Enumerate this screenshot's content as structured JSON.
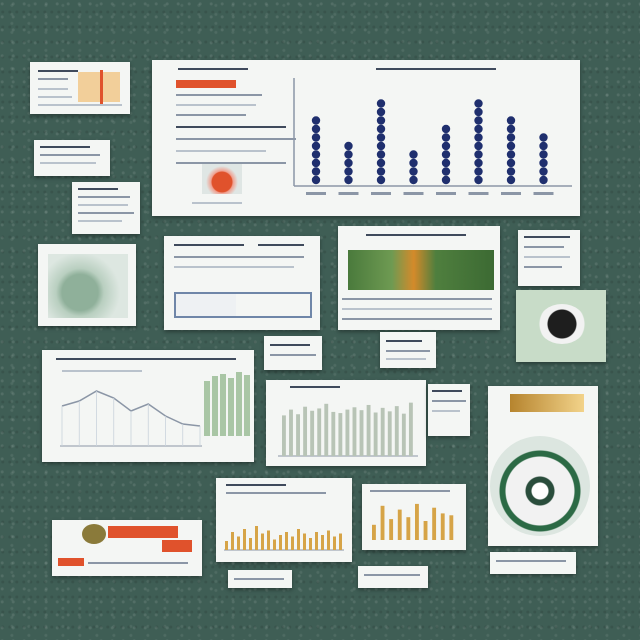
{
  "colors": {
    "board": "#3f5e55",
    "paper": "#f4f6f4",
    "bar_navy": "#1f2f6e",
    "bar_gray": "#b8c4b6",
    "bar_orange": "#e0522c",
    "bar_gold": "#d6a447",
    "line_gray": "#8b96a6",
    "sage_green": "#a9c6a5"
  },
  "chart_data": [
    {
      "type": "bar",
      "id": "main-dot-chart",
      "values": [
        8,
        5,
        10,
        4,
        7,
        10,
        8,
        6
      ]
    },
    {
      "type": "line",
      "id": "wave-line-chart",
      "values": [
        40,
        45,
        55,
        48,
        35,
        42,
        30,
        22,
        20
      ]
    },
    {
      "type": "bar",
      "id": "sage-column-chart",
      "values": [
        70,
        80,
        72,
        85,
        78,
        82,
        90,
        76,
        74,
        80,
        84,
        79,
        88,
        75,
        83,
        77,
        86,
        73,
        92
      ]
    },
    {
      "type": "bar",
      "id": "gold-bar-chart",
      "values": [
        40,
        90,
        55,
        80,
        60,
        95,
        50,
        85,
        70,
        65
      ]
    },
    {
      "type": "bar",
      "id": "small-gold-chart",
      "values": [
        30,
        60,
        45,
        70,
        40,
        80,
        55,
        65,
        35,
        50,
        60,
        45,
        70,
        55,
        40,
        60,
        50,
        65,
        45,
        55
      ]
    }
  ]
}
